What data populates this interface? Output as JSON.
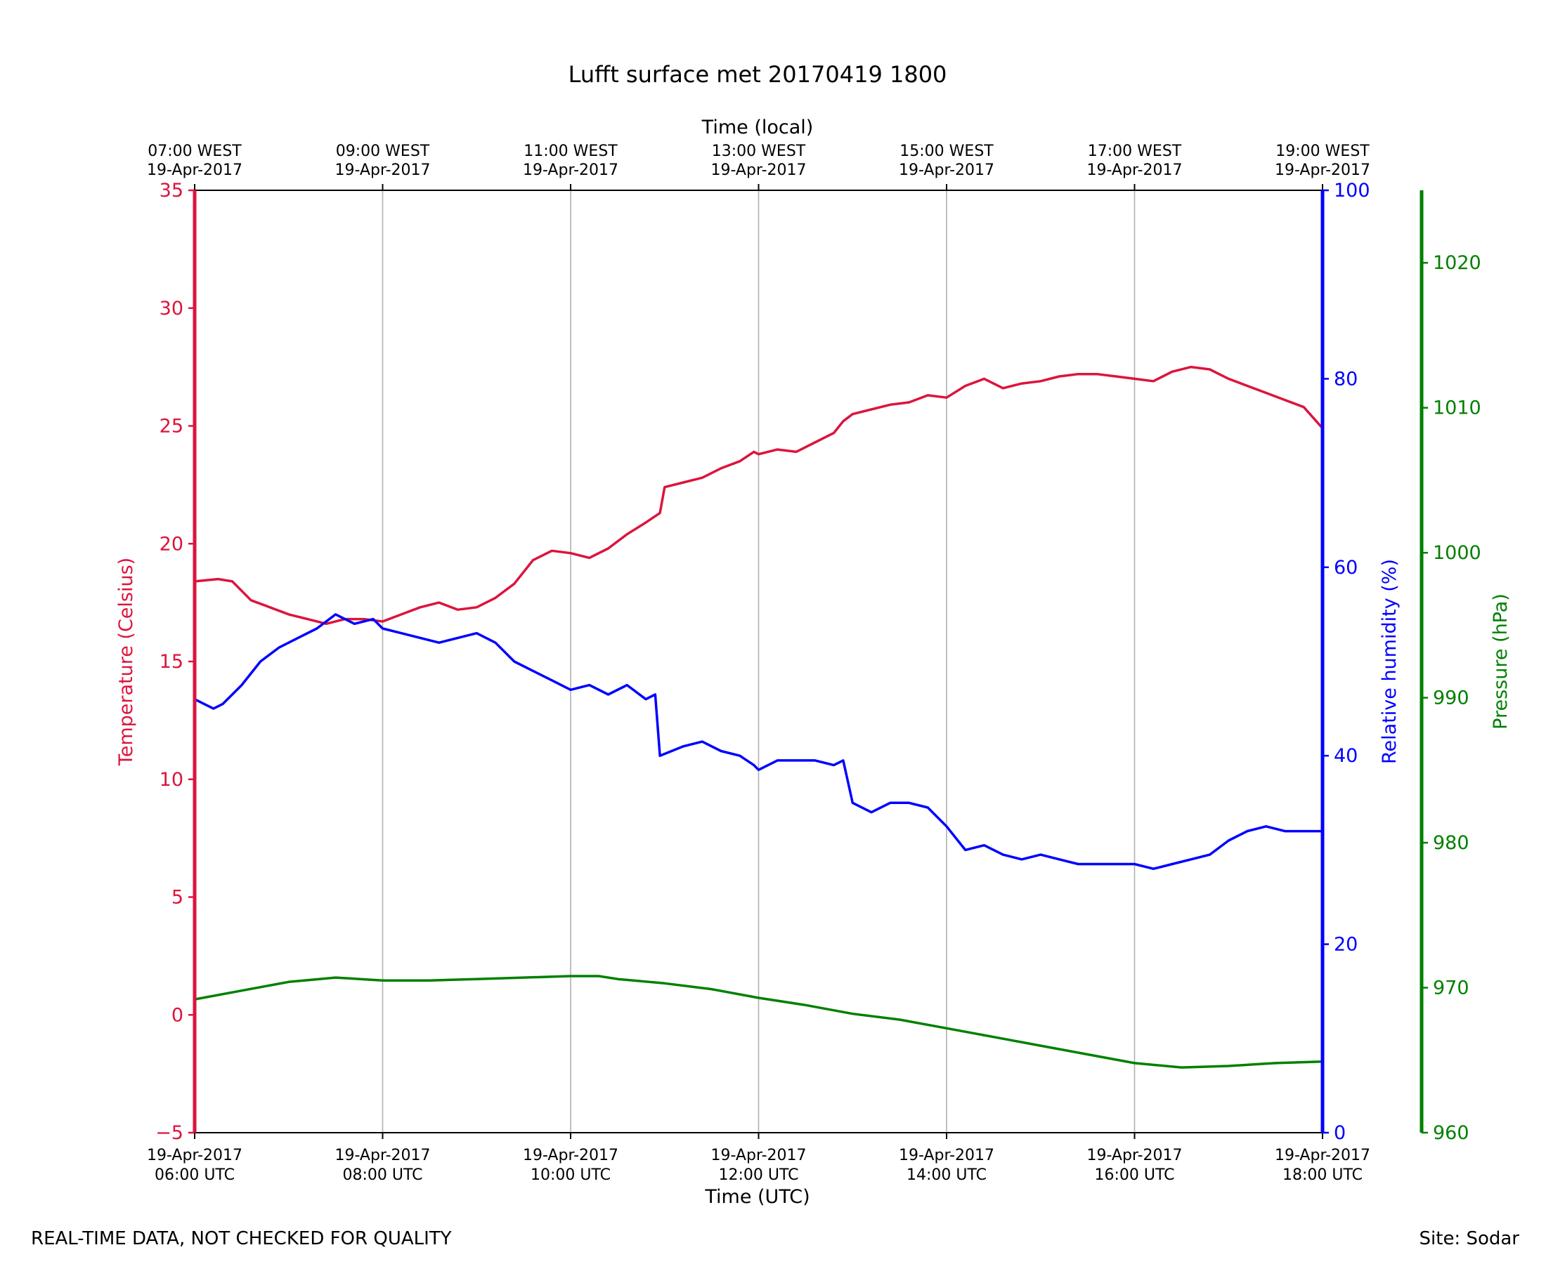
{
  "footer": {
    "left": "REAL-TIME DATA, NOT CHECKED FOR QUALITY",
    "right": "Site: Sodar"
  },
  "chart_data": {
    "type": "line",
    "title": "Lufft surface met 20170419 1800",
    "xlabel": "Time (UTC)",
    "xlabel_top": "Time (local)",
    "xlim": [
      6,
      18
    ],
    "grid": "vertical",
    "x_ticks": [
      {
        "x": 6,
        "line1": "19-Apr-2017",
        "line2": "06:00 UTC"
      },
      {
        "x": 8,
        "line1": "19-Apr-2017",
        "line2": "08:00 UTC"
      },
      {
        "x": 10,
        "line1": "19-Apr-2017",
        "line2": "10:00 UTC"
      },
      {
        "x": 12,
        "line1": "19-Apr-2017",
        "line2": "12:00 UTC"
      },
      {
        "x": 14,
        "line1": "19-Apr-2017",
        "line2": "14:00 UTC"
      },
      {
        "x": 16,
        "line1": "19-Apr-2017",
        "line2": "16:00 UTC"
      },
      {
        "x": 18,
        "line1": "19-Apr-2017",
        "line2": "18:00 UTC"
      }
    ],
    "x_ticks_top": [
      {
        "x": 6,
        "line1": "07:00 WEST",
        "line2": "19-Apr-2017"
      },
      {
        "x": 8,
        "line1": "09:00 WEST",
        "line2": "19-Apr-2017"
      },
      {
        "x": 10,
        "line1": "11:00 WEST",
        "line2": "19-Apr-2017"
      },
      {
        "x": 12,
        "line1": "13:00 WEST",
        "line2": "19-Apr-2017"
      },
      {
        "x": 14,
        "line1": "15:00 WEST",
        "line2": "19-Apr-2017"
      },
      {
        "x": 16,
        "line1": "17:00 WEST",
        "line2": "19-Apr-2017"
      },
      {
        "x": 18,
        "line1": "19:00 WEST",
        "line2": "19-Apr-2017"
      }
    ],
    "axes": {
      "temperature": {
        "label": "Temperature (Celsius)",
        "ylim": [
          -5,
          35
        ],
        "ticks": [
          -5,
          0,
          5,
          10,
          15,
          20,
          25,
          30,
          35
        ],
        "tick_labels": [
          "−5",
          "0",
          "5",
          "10",
          "15",
          "20",
          "25",
          "30",
          "35"
        ],
        "color": "#dc143c"
      },
      "humidity": {
        "label": "Relative humidity (%)",
        "ylim": [
          0,
          100
        ],
        "ticks": [
          0,
          20,
          40,
          60,
          80,
          100
        ],
        "tick_labels": [
          "0",
          "20",
          "40",
          "60",
          "80",
          "100"
        ],
        "color": "#0000ff"
      },
      "pressure": {
        "label": "Pressure (hPa)",
        "ylim": [
          960,
          1025
        ],
        "ticks": [
          960,
          970,
          980,
          990,
          1000,
          1010,
          1020
        ],
        "tick_labels": [
          "960",
          "970",
          "980",
          "990",
          "1000",
          "1010",
          "1020"
        ],
        "color": "#008000"
      }
    },
    "series": [
      {
        "axis": "temperature",
        "color": "#dc143c",
        "x": [
          6.0,
          6.25,
          6.4,
          6.6,
          6.8,
          7.0,
          7.2,
          7.4,
          7.6,
          7.8,
          8.0,
          8.2,
          8.4,
          8.6,
          8.8,
          9.0,
          9.2,
          9.4,
          9.6,
          9.8,
          10.0,
          10.2,
          10.4,
          10.6,
          10.8,
          10.95,
          11.0,
          11.2,
          11.4,
          11.6,
          11.8,
          11.95,
          12.0,
          12.2,
          12.4,
          12.6,
          12.8,
          12.9,
          13.0,
          13.2,
          13.4,
          13.6,
          13.8,
          14.0,
          14.2,
          14.4,
          14.6,
          14.8,
          15.0,
          15.2,
          15.4,
          15.6,
          15.8,
          16.0,
          16.2,
          16.4,
          16.6,
          16.8,
          17.0,
          17.2,
          17.4,
          17.6,
          17.8,
          18.0
        ],
        "y": [
          18.4,
          18.5,
          18.4,
          17.6,
          17.3,
          17.0,
          16.8,
          16.6,
          16.8,
          16.8,
          16.7,
          17.0,
          17.3,
          17.5,
          17.2,
          17.3,
          17.7,
          18.3,
          19.3,
          19.7,
          19.6,
          19.4,
          19.8,
          20.4,
          20.9,
          21.3,
          22.4,
          22.6,
          22.8,
          23.2,
          23.5,
          23.9,
          23.8,
          24.0,
          23.9,
          24.3,
          24.7,
          25.2,
          25.5,
          25.7,
          25.9,
          26.0,
          26.3,
          26.2,
          26.7,
          27.0,
          26.6,
          26.8,
          26.9,
          27.1,
          27.2,
          27.2,
          27.1,
          27.0,
          26.9,
          27.3,
          27.5,
          27.4,
          27.0,
          26.7,
          26.4,
          26.1,
          25.8,
          24.9
        ]
      },
      {
        "axis": "humidity",
        "color": "#0000ff",
        "x": [
          6.0,
          6.1,
          6.2,
          6.3,
          6.5,
          6.7,
          6.9,
          7.1,
          7.3,
          7.5,
          7.7,
          7.9,
          8.0,
          8.2,
          8.4,
          8.6,
          8.8,
          9.0,
          9.2,
          9.4,
          9.6,
          9.8,
          10.0,
          10.2,
          10.4,
          10.6,
          10.8,
          10.9,
          10.95,
          11.2,
          11.4,
          11.6,
          11.8,
          11.95,
          12.0,
          12.2,
          12.4,
          12.6,
          12.8,
          12.9,
          13.0,
          13.2,
          13.4,
          13.6,
          13.8,
          14.0,
          14.2,
          14.4,
          14.6,
          14.8,
          15.0,
          15.2,
          15.4,
          15.6,
          15.8,
          16.0,
          16.2,
          16.4,
          16.6,
          16.8,
          17.0,
          17.2,
          17.4,
          17.6,
          17.8,
          18.0
        ],
        "y": [
          46.0,
          45.5,
          45.0,
          45.5,
          47.5,
          50.0,
          51.5,
          52.5,
          53.5,
          55.0,
          54.0,
          54.5,
          53.5,
          53.0,
          52.5,
          52.0,
          52.5,
          53.0,
          52.0,
          50.0,
          49.0,
          48.0,
          47.0,
          47.5,
          46.5,
          47.5,
          46.0,
          46.5,
          40.0,
          41.0,
          41.5,
          40.5,
          40.0,
          39.0,
          38.5,
          39.5,
          39.5,
          39.5,
          39.0,
          39.5,
          35.0,
          34.0,
          35.0,
          35.0,
          34.5,
          32.5,
          30.0,
          30.5,
          29.5,
          29.0,
          29.5,
          29.0,
          28.5,
          28.5,
          28.5,
          28.5,
          28.0,
          28.5,
          29.0,
          29.5,
          31.0,
          32.0,
          32.5,
          32.0,
          32.0,
          32.0
        ]
      },
      {
        "axis": "pressure",
        "color": "#008000",
        "x": [
          6.0,
          6.5,
          7.0,
          7.5,
          8.0,
          8.5,
          9.0,
          9.5,
          10.0,
          10.3,
          10.5,
          11.0,
          11.5,
          12.0,
          12.5,
          13.0,
          13.5,
          14.0,
          14.5,
          15.0,
          15.5,
          16.0,
          16.5,
          17.0,
          17.5,
          18.0
        ],
        "y": [
          969.2,
          969.8,
          970.4,
          970.7,
          970.5,
          970.5,
          970.6,
          970.7,
          970.8,
          970.8,
          970.6,
          970.3,
          969.9,
          969.3,
          968.8,
          968.2,
          967.8,
          967.2,
          966.6,
          966.0,
          965.4,
          964.8,
          964.5,
          964.6,
          964.8,
          964.9
        ]
      }
    ]
  }
}
